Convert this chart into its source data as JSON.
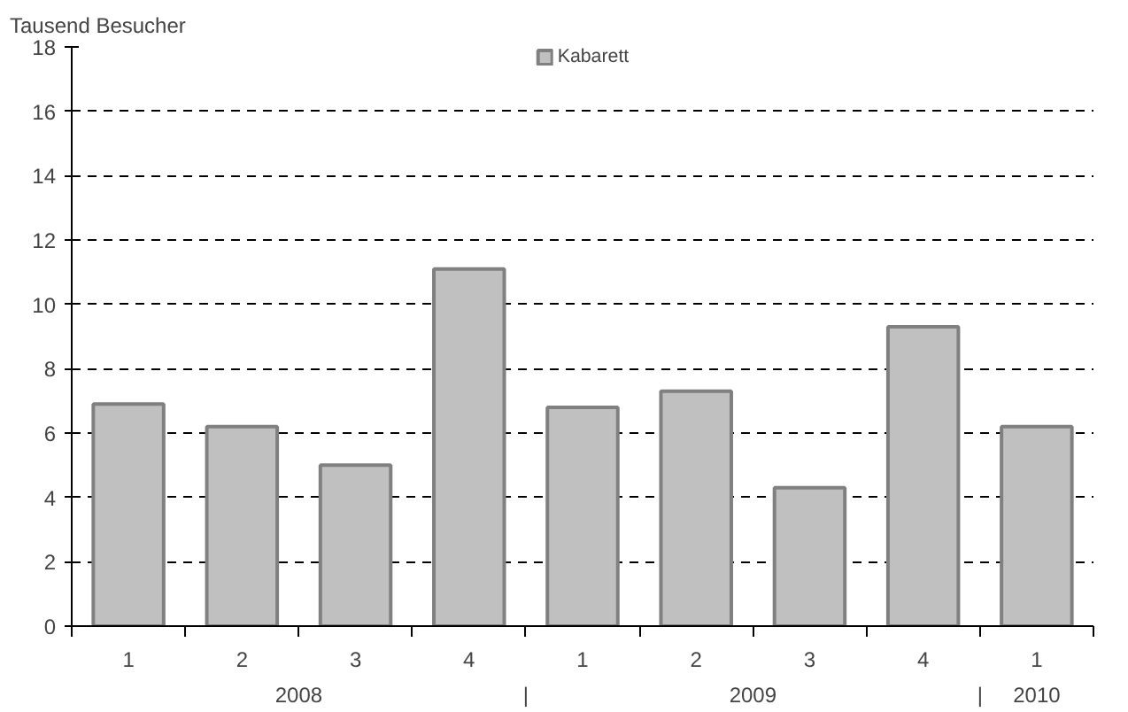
{
  "chart_data": {
    "type": "bar",
    "ylabel": "Tausend Besucher",
    "categories": [
      "1",
      "2",
      "3",
      "4",
      "1",
      "2",
      "3",
      "4",
      "1"
    ],
    "series": [
      {
        "name": "Kabarett",
        "color": "#c0c0c0",
        "values": [
          6.9,
          6.2,
          5.0,
          11.1,
          6.8,
          7.3,
          4.3,
          9.3,
          6.2
        ]
      }
    ],
    "ylim": [
      0,
      18
    ],
    "yticks": [
      0,
      2,
      4,
      6,
      8,
      10,
      12,
      14,
      16,
      18
    ],
    "grid": "y",
    "legend": "top",
    "annotations": [
      "2008",
      "|",
      "2009",
      "|",
      "2010"
    ]
  }
}
